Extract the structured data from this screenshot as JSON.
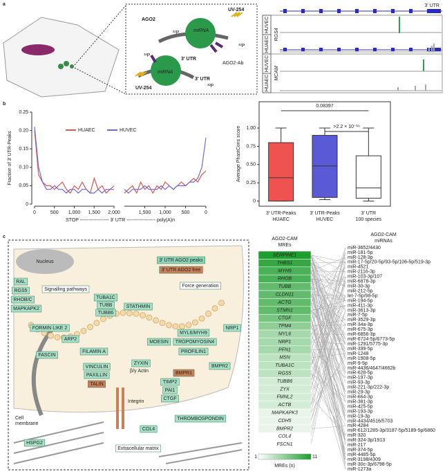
{
  "panel_labels": [
    "a",
    "b",
    "c"
  ],
  "panel_a": {
    "schematic": {
      "ago2": "AGO2",
      "uv": [
        "UV-254",
        "UV-254"
      ],
      "p32": [
        "³²P",
        "³²P",
        "³²P",
        "³²P"
      ],
      "mirna": [
        "miRNA",
        "miRNA"
      ],
      "utr": [
        "3′ UTR",
        "3′ UTR"
      ],
      "antibody": "AGO2-Ab"
    },
    "tracks": {
      "utr_label": "3′ UTR",
      "genes": [
        {
          "name": "RGS4",
          "rows": [
            "HUVEC",
            "HUAEC"
          ]
        },
        {
          "name": "MCAM",
          "rows": [
            "HUVEC",
            "HUAEC"
          ]
        }
      ]
    }
  },
  "chart_data": [
    {
      "type": "line",
      "ylabel": "Fraction of 3′ UTR-Peaks",
      "ylim": [
        0,
        0.25
      ],
      "yticks": [
        0,
        0.05,
        {
          "value": 0.1,
          "label": "0.10"
        },
        0.15,
        {
          "value": 0.2,
          "label": "0.20"
        },
        0.25
      ],
      "start_xlim": [
        0,
        2000
      ],
      "start_xticks": [
        0,
        500,
        {
          "value": 1000,
          "label": "1,000"
        },
        {
          "value": 1500,
          "label": "1,500"
        },
        {
          "value": 2000,
          "label": "2,000"
        }
      ],
      "end_xlim": [
        2000,
        0
      ],
      "end_xticks": [
        {
          "value": 1500,
          "label": "1,500"
        },
        {
          "value": 1000,
          "label": "1,000"
        },
        500,
        0
      ],
      "start_x": [
        0,
        100,
        200,
        300,
        400,
        500,
        600,
        700,
        800,
        900,
        1000,
        1100,
        1200,
        1300,
        1400,
        1500,
        1600,
        1700,
        1800,
        1900,
        2000
      ],
      "end_x": [
        2000,
        1900,
        1800,
        1700,
        1600,
        1500,
        1400,
        1300,
        1200,
        1100,
        1000,
        900,
        800,
        700,
        600,
        500,
        400,
        300,
        200,
        100,
        0
      ],
      "series": [
        {
          "name": "HUAEC",
          "color": "#e0554c",
          "start_values": [
            0.2,
            0.08,
            0.06,
            0.05,
            0.05,
            0.04,
            0.05,
            0.06,
            0.04,
            0.03,
            0.05,
            0.04,
            0.06,
            0.04,
            0.03,
            0.07,
            0.04,
            0.05,
            0.03,
            0.04,
            0.05
          ],
          "end_values": [
            0.03,
            0.04,
            0.05,
            0.03,
            0.06,
            0.04,
            0.05,
            0.03,
            0.05,
            0.04,
            0.06,
            0.05,
            0.04,
            0.05,
            0.06,
            0.05,
            0.06,
            0.07,
            0.06,
            0.08,
            0.09
          ]
        },
        {
          "name": "HUVEC",
          "color": "#6a6ae0",
          "start_values": [
            0.21,
            0.1,
            0.06,
            0.04,
            0.04,
            0.05,
            0.04,
            0.04,
            0.03,
            0.04,
            0.04,
            0.03,
            0.04,
            0.04,
            0.03,
            0.03,
            0.04,
            0.03,
            0.04,
            0.04,
            0.04
          ],
          "end_values": [
            0.04,
            0.03,
            0.04,
            0.04,
            0.04,
            0.05,
            0.04,
            0.04,
            0.04,
            0.05,
            0.04,
            0.05,
            0.04,
            0.05,
            0.05,
            0.05,
            0.06,
            0.06,
            0.07,
            0.1,
            0.18
          ]
        }
      ],
      "xlabel": "STOP ------------------ 3′ UTR ------------------ poly(A)n"
    },
    {
      "type": "box",
      "ylabel": "Average PhastCons score",
      "ylim": [
        -0.07,
        1.36
      ],
      "yticks": [
        0,
        0.25,
        {
          "value": 0.5,
          "label": "0.50"
        },
        0.75,
        {
          "value": 1,
          "label": "1.00"
        }
      ],
      "categories": [
        [
          "3′ UTR-Peaks",
          "HUAEC"
        ],
        [
          "3′ UTR-Peaks",
          "HUVEC"
        ],
        [
          "3′ UTR",
          "100 species"
        ]
      ],
      "colors": [
        "#ef5350",
        "#5a5ad6",
        "#ffffff"
      ],
      "min": [
        0,
        0.02,
        0
      ],
      "q1": [
        0,
        0.05,
        0.04
      ],
      "median": [
        0.32,
        0.48,
        0.18
      ],
      "q3": [
        0.8,
        0.9,
        0.62
      ],
      "max": [
        1,
        1,
        1
      ],
      "annotations": [
        "0.08397",
        ">2.2 × 10⁻¹⁶"
      ]
    }
  ],
  "panel_c": {
    "diagram": {
      "nucleus": "Nucleus",
      "legend_peaks": "3′ UTR AGO2 peaks",
      "legend_free": "3′ UTR AGO2 free",
      "force": "Force generation",
      "signalling": "Signalling pathways",
      "labels": [
        "RAL",
        "RGS5",
        "RHOB/C",
        "MAPKAPK2",
        "TUBA1C",
        "TUBB",
        "TUBB6",
        "STATHMIN",
        "MYL6/MYH9",
        "NRP1",
        "FORMIN LIKE 2",
        "ARP2",
        "MOESIN",
        "TROPOMYOSIN4",
        "FASCIN",
        "FILAMIN A",
        "PROFILIN1",
        "BMPR2",
        "VINCULIN",
        "PAXILLIN",
        "ZYXIN",
        "TIMP2",
        "PAI1",
        "CTGF",
        "HSPG2",
        "COL4",
        "THROMBOSPONDIN"
      ],
      "free_labels": [
        "BMPR1",
        "TALIN"
      ],
      "actin": "β/γ Actin",
      "integrin": "Integrin",
      "membrane": [
        "Cell",
        "membrane"
      ],
      "matrix": "Extracellular matrix"
    },
    "mres": {
      "header": [
        "AGO2-CAM",
        "MREs"
      ],
      "genes": [
        "SERPINE1",
        "THBS1",
        "MYH9",
        "RHOB",
        "TUBB",
        "CLDN11",
        "ACTG",
        "STMN1",
        "CTGF",
        "TPM4",
        "MYL6",
        "NRP1",
        "PFN1",
        "MSN",
        "TUBA1C",
        "RGS5",
        "TUBB6",
        "ZYX",
        "FMNL2",
        "ACTB",
        "MAPKAPK3",
        "CDH5",
        "BMPR2",
        "COL4",
        "FSCN1"
      ],
      "counts": [
        11,
        10,
        9,
        9,
        8,
        8,
        8,
        8,
        7,
        6,
        5,
        5,
        5,
        4,
        4,
        4,
        3,
        3,
        3,
        3,
        2,
        2,
        2,
        1,
        1
      ],
      "scale_min": 1,
      "scale_max": 11,
      "scale_label": "MREs (n)"
    },
    "mirnas": {
      "header": [
        "AGO2-CAM",
        "miRNAs"
      ],
      "names": [
        "miR-3652/4430",
        "miR-181-5p",
        "miR-128-3p",
        "miR-17-5p/20-5p/93-5p/106-5p/519-3p",
        "miR-4521",
        "miR-2116-3p",
        "miR-103-3p/107",
        "miR-6878-3p",
        "miR-30-3p",
        "miR-212-5p",
        "let-7-5p/98-5p",
        "miR-194-5p",
        "miR-411-3p",
        "miR-3613-3p",
        "miR-7-5p",
        "miR-3529-3p",
        "miR-34a-3p",
        "miR-675-3p",
        "miR-6856-3p",
        "miR-6724-5p/6773-5p",
        "miR-1291/5775-3p",
        "miR-339-5p",
        "miR-1248",
        "miR-1908-5p",
        "miR-9-5p",
        "miR-4436/4647/4662b",
        "miR-628-5p",
        "miR-197-3p",
        "miR-93-3p",
        "miR-221-3p/222-3p",
        "miR-29-3p",
        "miR-664-3p",
        "miR-381-3p",
        "miR-425-5p",
        "miR-193-3p",
        "miR-19-3p",
        "miR-4434/4516/5703",
        "miR-4284",
        "miR-612/1285-3p/3187-5p/5189-5p/6860",
        "miR-320",
        "miR-324-3p/1913",
        "miR-217",
        "miR-374-5p",
        "miR-4485-5p",
        "miR-3198/4309",
        "miR-30c-3p/6798-5p",
        "miR-1273a"
      ]
    }
  }
}
